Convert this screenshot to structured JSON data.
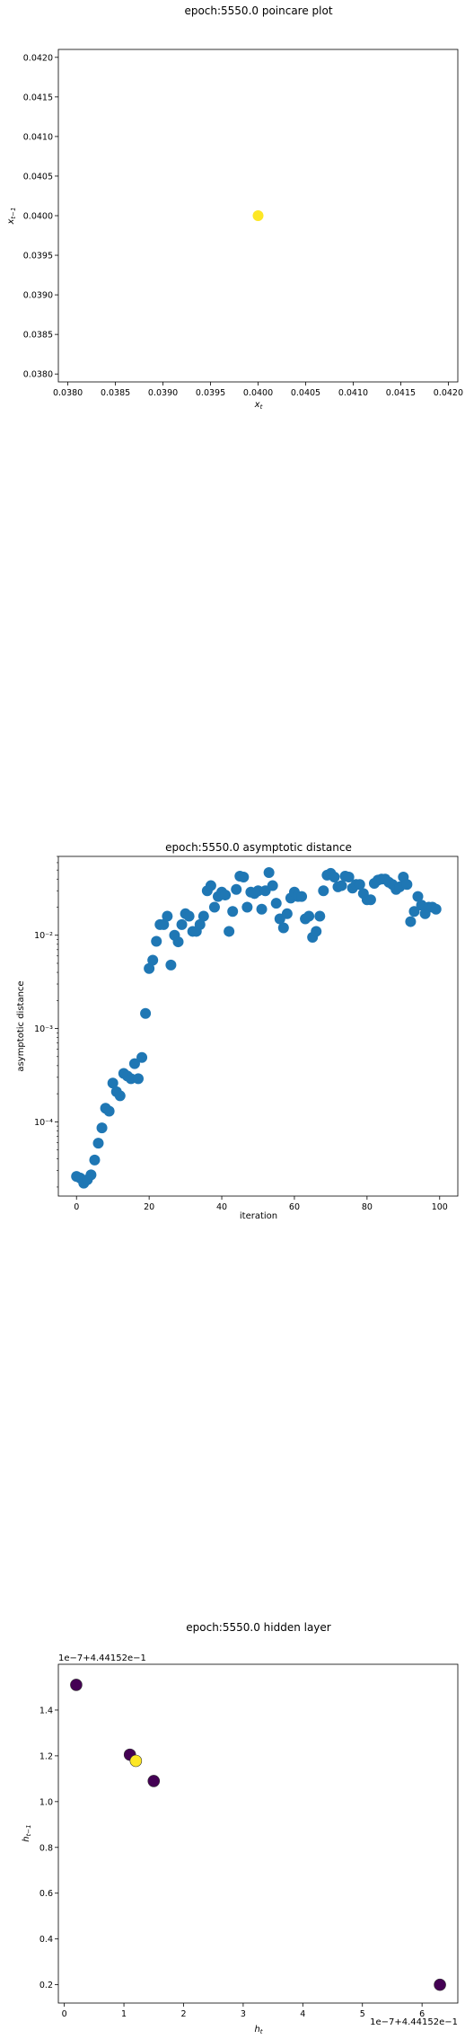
{
  "chart_data": [
    {
      "type": "scatter",
      "title": "epoch:5550.0 poincare plot",
      "xlabel": "x_t",
      "ylabel": "x_{t-1}",
      "xlim": [
        0.0379,
        0.0421
      ],
      "ylim": [
        0.0379,
        0.0421
      ],
      "xticks": [
        0.038,
        0.0385,
        0.039,
        0.0395,
        0.04,
        0.0405,
        0.041,
        0.0415,
        0.042
      ],
      "xtick_labels": [
        "0.0380",
        "0.0385",
        "0.0390",
        "0.0395",
        "0.0400",
        "0.0405",
        "0.0410",
        "0.0415",
        "0.0420"
      ],
      "yticks": [
        0.038,
        0.0385,
        0.039,
        0.0395,
        0.04,
        0.0405,
        0.041,
        0.0415,
        0.042
      ],
      "ytick_labels": [
        "0.0380",
        "0.0385",
        "0.0390",
        "0.0395",
        "0.0400",
        "0.0405",
        "0.0410",
        "0.0415",
        "0.0420"
      ],
      "points": [
        {
          "x": 0.04,
          "y": 0.04
        }
      ],
      "color": "#fde725",
      "grid": false
    },
    {
      "type": "scatter",
      "title": "epoch:5550.0 asymptotic distance",
      "xlabel": "iteration",
      "ylabel": "asymptotic distance",
      "xlim": [
        -5,
        105
      ],
      "ylim": [
        1.6e-05,
        0.07
      ],
      "yscale": "log",
      "xticks": [
        0,
        20,
        40,
        60,
        80,
        100
      ],
      "xtick_labels": [
        "0",
        "20",
        "40",
        "60",
        "80",
        "100"
      ],
      "yticks": [
        0.0001,
        0.001,
        0.01
      ],
      "ytick_labels": [
        "10⁻⁴",
        "10⁻³",
        "10⁻²"
      ],
      "color": "#1f77b4",
      "grid": false,
      "x": [
        0,
        1,
        2,
        3,
        4,
        5,
        6,
        7,
        8,
        9,
        10,
        11,
        12,
        13,
        14,
        15,
        16,
        17,
        18,
        19,
        20,
        21,
        22,
        23,
        24,
        25,
        26,
        27,
        28,
        29,
        30,
        31,
        32,
        33,
        34,
        35,
        36,
        37,
        38,
        39,
        40,
        41,
        42,
        43,
        44,
        45,
        46,
        47,
        48,
        49,
        50,
        51,
        52,
        53,
        54,
        55,
        56,
        57,
        58,
        59,
        60,
        61,
        62,
        63,
        64,
        65,
        66,
        67,
        68,
        69,
        70,
        71,
        72,
        73,
        74,
        75,
        76,
        77,
        78,
        79,
        80,
        81,
        82,
        83,
        84,
        85,
        86,
        87,
        88,
        89,
        90,
        91,
        92,
        93,
        94,
        95,
        96,
        97,
        98,
        99
      ],
      "y": [
        2.6e-05,
        2.5e-05,
        2.2e-05,
        2.4e-05,
        2.7e-05,
        3.9e-05,
        5.9e-05,
        8.6e-05,
        0.00014,
        0.00013,
        0.00026,
        0.00021,
        0.00019,
        0.00033,
        0.00031,
        0.00029,
        0.00042,
        0.00029,
        0.00049,
        0.00145,
        0.0044,
        0.0054,
        0.0086,
        0.013,
        0.013,
        0.016,
        0.0048,
        0.01,
        0.0085,
        0.013,
        0.017,
        0.016,
        0.011,
        0.011,
        0.013,
        0.016,
        0.03,
        0.034,
        0.02,
        0.026,
        0.029,
        0.027,
        0.011,
        0.018,
        0.031,
        0.043,
        0.042,
        0.02,
        0.029,
        0.028,
        0.03,
        0.019,
        0.03,
        0.047,
        0.034,
        0.022,
        0.015,
        0.012,
        0.017,
        0.025,
        0.029,
        0.026,
        0.026,
        0.015,
        0.016,
        0.0095,
        0.011,
        0.016,
        0.03,
        0.044,
        0.046,
        0.042,
        0.033,
        0.034,
        0.043,
        0.042,
        0.032,
        0.035,
        0.035,
        0.028,
        0.024,
        0.024,
        0.036,
        0.039,
        0.04,
        0.04,
        0.037,
        0.035,
        0.031,
        0.033,
        0.042,
        0.035,
        0.014,
        0.018,
        0.026,
        0.021,
        0.017,
        0.02,
        0.02,
        0.019
      ]
    },
    {
      "type": "scatter",
      "title": "epoch:5550.0 hidden layer",
      "xlabel": "h_t",
      "ylabel": "h_{t-1}",
      "x_offset_label": "1e−7+4.44152e−1",
      "y_offset_label": "1e−7+4.44152e−1",
      "xlim": [
        -0.1,
        6.6
      ],
      "ylim": [
        0.12,
        1.6
      ],
      "xticks": [
        0,
        1,
        2,
        3,
        4,
        5,
        6
      ],
      "xtick_labels": [
        "0",
        "1",
        "2",
        "3",
        "4",
        "5",
        "6"
      ],
      "yticks": [
        0.2,
        0.4,
        0.6,
        0.8,
        1.0,
        1.2,
        1.4
      ],
      "ytick_labels": [
        "0.2",
        "0.4",
        "0.6",
        "0.8",
        "1.0",
        "1.2",
        "1.4"
      ],
      "grid": false,
      "points": [
        {
          "x": 0.2,
          "y": 1.51,
          "color": "#440154"
        },
        {
          "x": 1.1,
          "y": 1.205,
          "color": "#440154"
        },
        {
          "x": 1.2,
          "y": 1.178,
          "color": "#fde725"
        },
        {
          "x": 1.5,
          "y": 1.09,
          "color": "#440154"
        },
        {
          "x": 6.3,
          "y": 0.2,
          "color": "#440154"
        }
      ],
      "edge_color": "#333333"
    }
  ]
}
